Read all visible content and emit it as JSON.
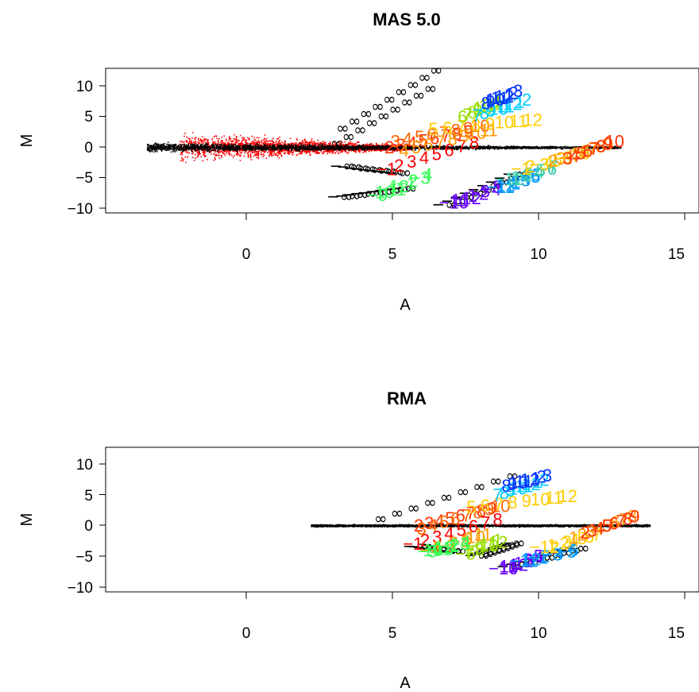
{
  "chart_data": [
    {
      "type": "scatter",
      "title": "MAS 5.0",
      "xlabel": "A",
      "ylabel": "M",
      "xlim": [
        -4.8,
        15.2
      ],
      "ylim": [
        -10,
        10
      ],
      "xticks": [
        "0",
        "5",
        "10",
        "15"
      ],
      "yticks": [
        "10",
        "5",
        "0",
        "−5",
        "−10"
      ],
      "grid": false,
      "cloud": {
        "x_range": [
          -3.4,
          12.8
        ],
        "color": "#000000"
      },
      "spread_cloud": {
        "x_range": [
          -2.3,
          5.6
        ],
        "color": "#ff0000"
      },
      "infinity_rows": [
        {
          "label": "∞",
          "x": [
            3.3,
            6.5
          ],
          "y": [
            3.0,
            12.5
          ]
        },
        {
          "label": "∞",
          "x": [
            3.1,
            6.3
          ],
          "y": [
            0.5,
            9.5
          ]
        },
        {
          "label": "−∞",
          "x": [
            3.3,
            5.2
          ],
          "y": [
            -3.2,
            -4.3
          ]
        },
        {
          "label": "−∞",
          "x": [
            3.2,
            5.4
          ],
          "y": [
            -8.2,
            -6.8
          ]
        },
        {
          "label": "−∞",
          "x": [
            6.8,
            9.2
          ],
          "y": [
            -9.5,
            -4.5
          ]
        }
      ],
      "number_series": [
        {
          "color": "#ff0000",
          "x": [
            4.8,
            7.8
          ],
          "y": [
            -3.6,
            0.8
          ]
        },
        {
          "color": "#ff3300",
          "x": [
            4.9,
            7.6
          ],
          "y": [
            0.0,
            2.6
          ]
        },
        {
          "color": "#ff6600",
          "x": [
            5.1,
            8.0
          ],
          "y": [
            1.0,
            3.5
          ]
        },
        {
          "color": "#ff9900",
          "x": [
            5.4,
            8.3
          ],
          "y": [
            -0.5,
            2.8
          ]
        },
        {
          "color": "#ffcc00",
          "x": [
            6.4,
            9.8
          ],
          "y": [
            3.0,
            4.5
          ]
        },
        {
          "color": "#99dd00",
          "x": [
            7.4,
            8.6
          ],
          "y": [
            5.0,
            7.5
          ]
        },
        {
          "color": "#00ccff",
          "x": [
            7.9,
            9.6
          ],
          "y": [
            5.2,
            7.8
          ]
        },
        {
          "color": "#0033ff",
          "x": [
            8.2,
            9.3
          ],
          "y": [
            7.2,
            9.2
          ]
        },
        {
          "color": "#33ff55",
          "x": [
            4.5,
            6.2
          ],
          "y": [
            -7.8,
            -4.5
          ]
        },
        {
          "color": "#6600ff",
          "x": [
            7.1,
            8.6
          ],
          "y": [
            -9.0,
            -6.5
          ]
        },
        {
          "color": "#0099ff",
          "x": [
            8.7,
            9.9
          ],
          "y": [
            -6.5,
            -4.5
          ]
        },
        {
          "color": "#33ccaa",
          "x": [
            9.0,
            10.5
          ],
          "y": [
            -5.2,
            -3.2
          ]
        },
        {
          "color": "#ffcc00",
          "x": [
            9.4,
            11.6
          ],
          "y": [
            -3.5,
            -1.0
          ]
        },
        {
          "color": "#ff9900",
          "x": [
            10.5,
            12.4
          ],
          "y": [
            -2.2,
            0.5
          ]
        },
        {
          "color": "#ff3300",
          "x": [
            11.0,
            12.6
          ],
          "y": [
            -1.8,
            1.0
          ]
        }
      ]
    },
    {
      "type": "scatter",
      "title": "RMA",
      "xlabel": "A",
      "ylabel": "M",
      "xlim": [
        -4.8,
        15.2
      ],
      "ylim": [
        -10,
        10
      ],
      "xticks": [
        "0",
        "5",
        "10",
        "15"
      ],
      "yticks": [
        "10",
        "5",
        "0",
        "−5",
        "−10"
      ],
      "grid": false,
      "cloud": {
        "x_range": [
          2.2,
          13.8
        ],
        "color": "#000000"
      },
      "infinity_rows": [
        {
          "label": "∞",
          "x": [
            4.6,
            9.1
          ],
          "y": [
            1.0,
            8.0
          ]
        },
        {
          "label": "−∞",
          "x": [
            5.8,
            7.1
          ],
          "y": [
            -3.5,
            -4.3
          ]
        },
        {
          "label": "−∞",
          "x": [
            7.9,
            9.1
          ],
          "y": [
            -5.0,
            -3.0
          ]
        },
        {
          "label": "−∞",
          "x": [
            9.0,
            11.3
          ],
          "y": [
            -6.8,
            -3.8
          ]
        }
      ],
      "number_series": [
        {
          "color": "#ff0000",
          "x": [
            5.7,
            8.6
          ],
          "y": [
            -3.0,
            1.0
          ]
        },
        {
          "color": "#ff3300",
          "x": [
            5.9,
            8.4
          ],
          "y": [
            0.0,
            2.8
          ]
        },
        {
          "color": "#ff6600",
          "x": [
            6.0,
            8.7
          ],
          "y": [
            -0.5,
            3.2
          ]
        },
        {
          "color": "#ff9900",
          "x": [
            6.3,
            8.1
          ],
          "y": [
            -4.0,
            -1.5
          ]
        },
        {
          "color": "#ffcc00",
          "x": [
            7.7,
            11.0
          ],
          "y": [
            3.0,
            4.8
          ]
        },
        {
          "color": "#99dd00",
          "x": [
            7.5,
            8.6
          ],
          "y": [
            -4.6,
            -2.4
          ]
        },
        {
          "color": "#00ccff",
          "x": [
            8.6,
            10.2
          ],
          "y": [
            5.0,
            7.5
          ]
        },
        {
          "color": "#0033ff",
          "x": [
            8.9,
            10.3
          ],
          "y": [
            6.5,
            8.2
          ]
        },
        {
          "color": "#33ff55",
          "x": [
            6.2,
            7.5
          ],
          "y": [
            -4.2,
            -2.8
          ]
        },
        {
          "color": "#6600ff",
          "x": [
            8.8,
            10.0
          ],
          "y": [
            -7.0,
            -5.0
          ]
        },
        {
          "color": "#0099ff",
          "x": [
            9.5,
            11.2
          ],
          "y": [
            -5.8,
            -4.0
          ]
        },
        {
          "color": "#ffcc00",
          "x": [
            10.2,
            12.0
          ],
          "y": [
            -3.5,
            -1.5
          ]
        },
        {
          "color": "#ff9900",
          "x": [
            11.2,
            13.2
          ],
          "y": [
            -2.0,
            1.5
          ]
        },
        {
          "color": "#ff3300",
          "x": [
            11.6,
            13.3
          ],
          "y": [
            -1.2,
            1.5
          ]
        }
      ]
    }
  ]
}
